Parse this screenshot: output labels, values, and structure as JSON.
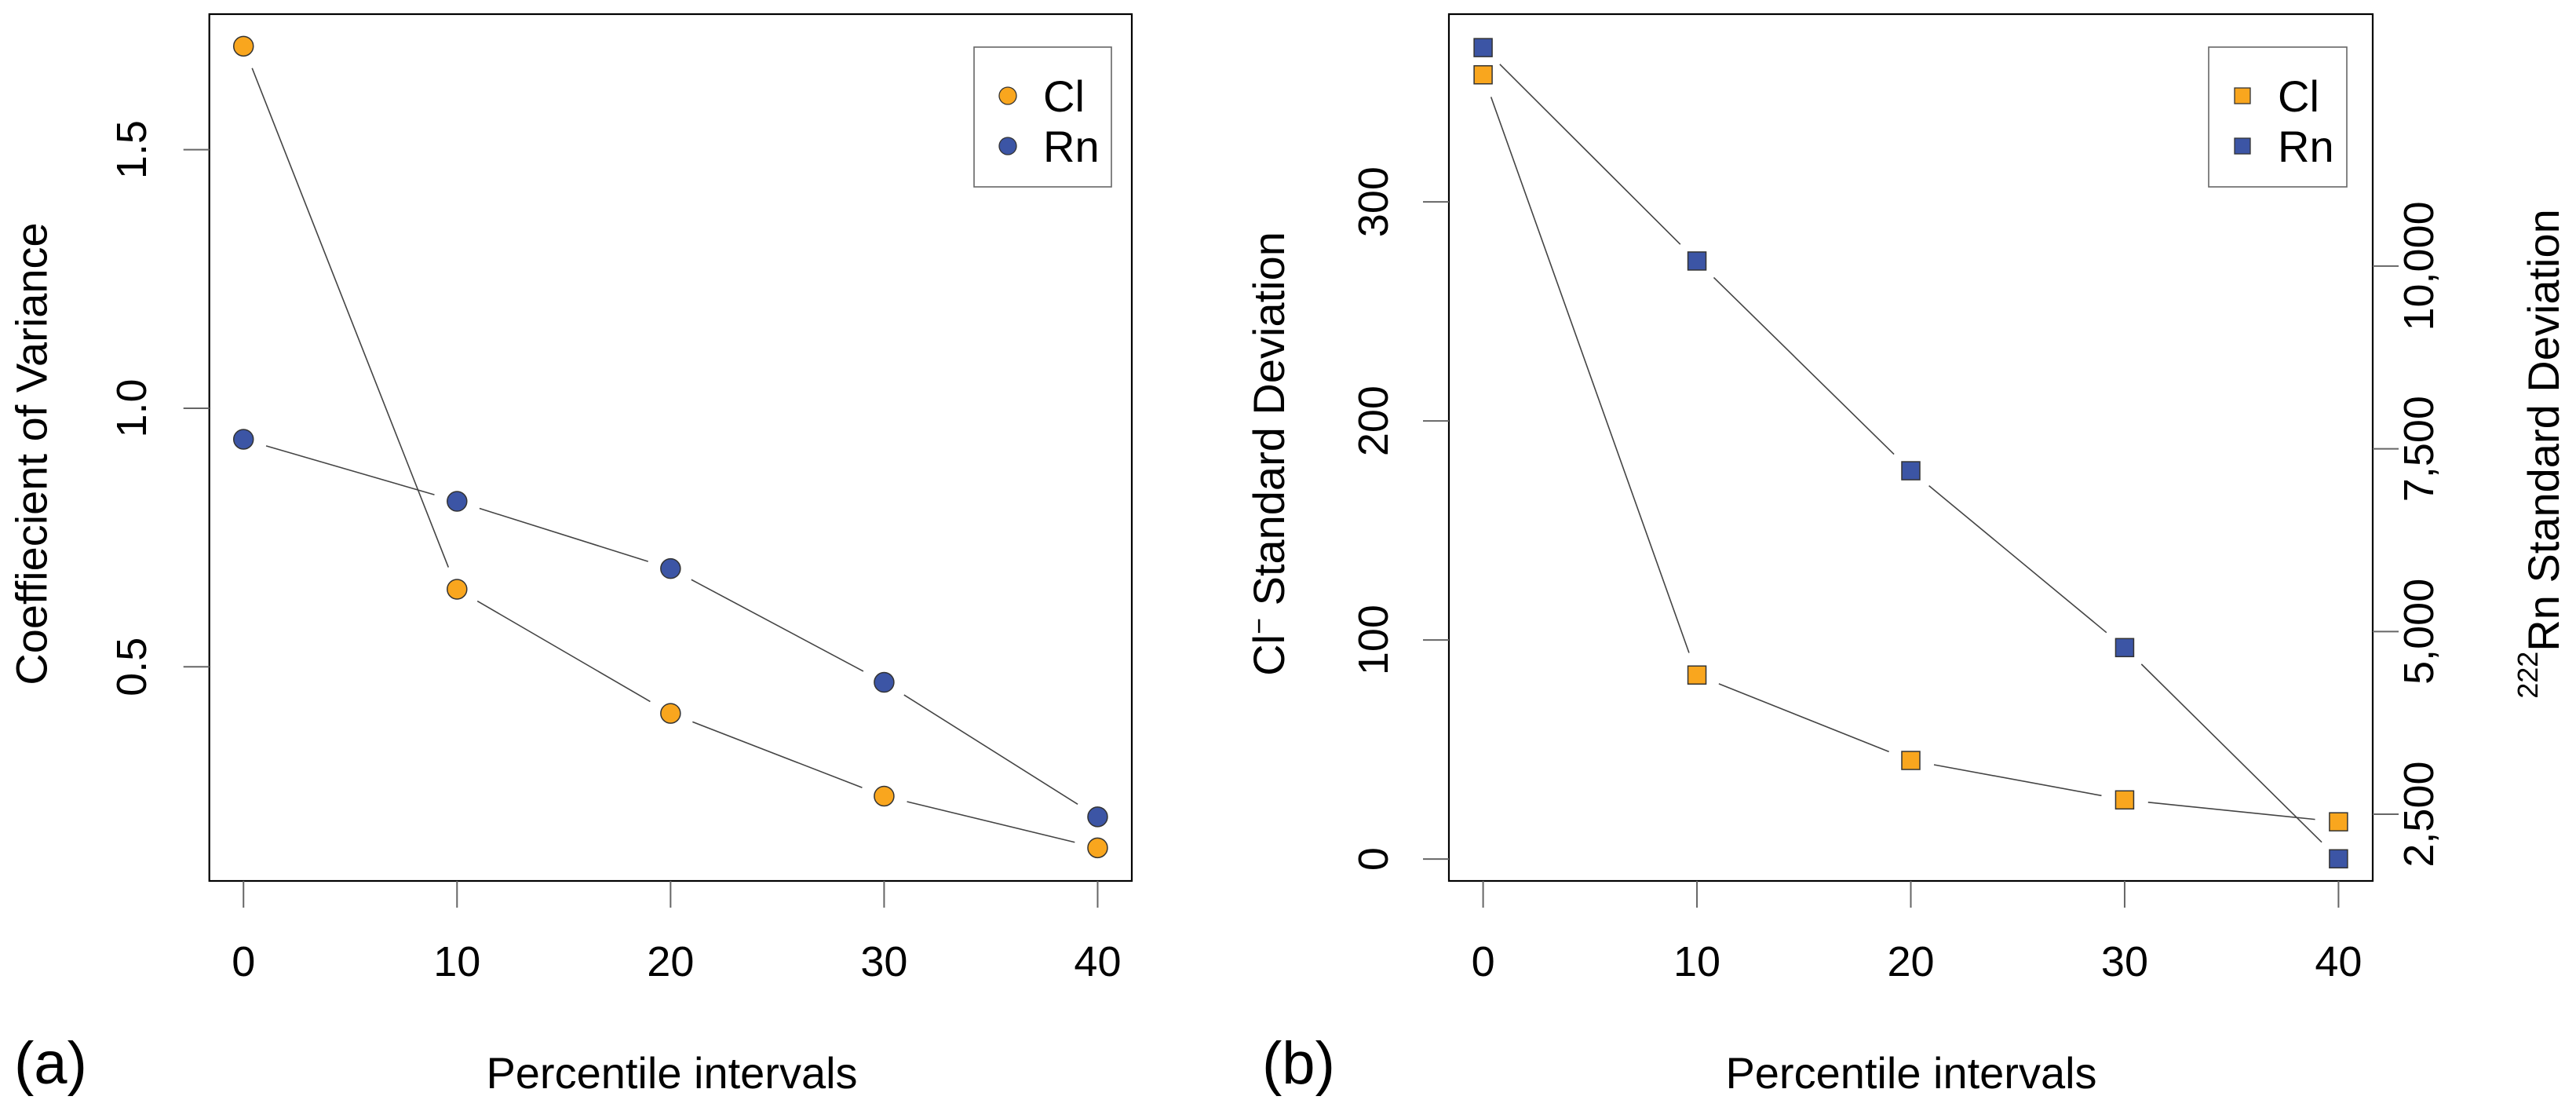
{
  "colors": {
    "cl": "#F9A61E",
    "rn": "#3C55A5",
    "line": "#444444"
  },
  "chart_data": [
    {
      "type": "line",
      "panel_label": "(a)",
      "marker": "circle",
      "title": "",
      "xlabel": "Percentile intervals",
      "ylabel": "Coeffiecient of Variance",
      "x": [
        0,
        10,
        20,
        30,
        40
      ],
      "xticks": [
        "0",
        "10",
        "20",
        "30",
        "40"
      ],
      "xlim": [
        -1.6,
        41.6
      ],
      "ylim": [
        0.086,
        1.762
      ],
      "yticks": [
        0.5,
        1.0,
        1.5
      ],
      "ytick_labels": [
        "0.5",
        "1.0",
        "1.5"
      ],
      "legend": {
        "position": "top-right",
        "entries": [
          "Cl",
          "Rn"
        ]
      },
      "series": [
        {
          "name": "Cl",
          "values": [
            1.7,
            0.65,
            0.41,
            0.25,
            0.15
          ]
        },
        {
          "name": "Rn",
          "values": [
            0.94,
            0.82,
            0.69,
            0.47,
            0.21
          ]
        }
      ]
    },
    {
      "type": "line",
      "panel_label": "(b)",
      "marker": "square",
      "title": "",
      "xlabel": "Percentile intervals",
      "ylabel": "Cl",
      "ylabel_sup": "−",
      "ylabel_rest": " Standard Deviation",
      "y2label_sup": "222",
      "y2label": "Rn Standard Deviation",
      "x": [
        0,
        10,
        20,
        30,
        40
      ],
      "xticks": [
        "0",
        "10",
        "20",
        "30",
        "40"
      ],
      "xlim": [
        -1.6,
        41.6
      ],
      "ylim": [
        -10,
        385.7
      ],
      "yticks": [
        0,
        100,
        200,
        300
      ],
      "ytick_labels": [
        "0",
        "100",
        "200",
        "300"
      ],
      "y2lim": [
        1587,
        13448
      ],
      "y2ticks": [
        2500,
        5000,
        7500,
        10000
      ],
      "y2tick_labels": [
        "2,500",
        "5,000",
        "7,500",
        "10,000"
      ],
      "legend": {
        "position": "top-right",
        "entries": [
          "Cl",
          "Rn"
        ]
      },
      "series": [
        {
          "name": "Cl",
          "axis": "left",
          "values": [
            358,
            84,
            45,
            27,
            17
          ]
        },
        {
          "name": "Rn",
          "axis": "right",
          "values": [
            12990,
            10070,
            7200,
            4780,
            1890
          ]
        }
      ]
    }
  ]
}
